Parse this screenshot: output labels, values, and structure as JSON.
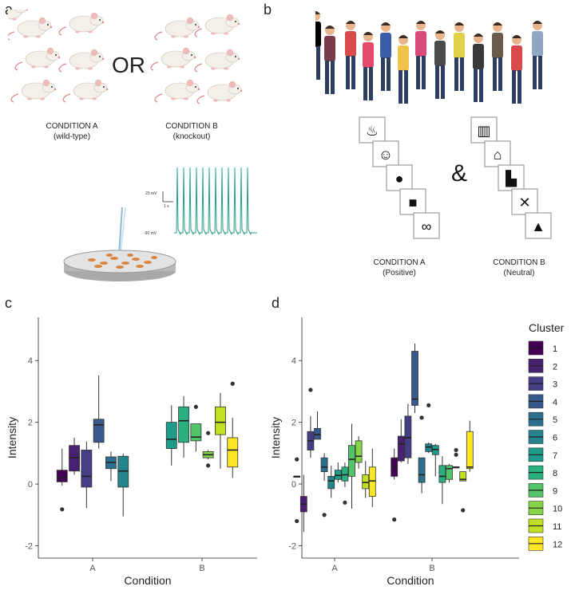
{
  "panel_a": {
    "letter": "a",
    "or_text": "OR",
    "condition_a": "CONDITION A",
    "condition_a_sub": "(wild-type)",
    "condition_b": "CONDITION B",
    "condition_b_sub": "(knockout)",
    "trace_scale_mv": "20 mV",
    "trace_scale_s": "1 s",
    "trace_baseline": "-90 mV",
    "trace_color": "#2a9d8f"
  },
  "panel_b": {
    "letter": "b",
    "ampersand": "&",
    "condition_a": "CONDITION A",
    "condition_a_sub": "(Positive)",
    "condition_b": "CONDITION B",
    "condition_b_sub": "(Neutral)"
  },
  "chart_data": [
    {
      "type": "boxplot",
      "panel": "c",
      "xlabel": "Condition",
      "ylabel": "Intensity",
      "ylim": [
        -2.4,
        5.4
      ],
      "yticks": [
        -2,
        0,
        2,
        4
      ],
      "categories": [
        "A",
        "B"
      ],
      "groups": [
        {
          "cond": "A",
          "cluster": 1,
          "min": -0.05,
          "q1": 0.07,
          "median": 0.22,
          "q3": 0.45,
          "max": 1.15,
          "outliers": [
            -0.82
          ]
        },
        {
          "cond": "A",
          "cluster": 2,
          "min": 0.3,
          "q1": 0.42,
          "median": 0.85,
          "q3": 1.25,
          "max": 1.5,
          "outliers": []
        },
        {
          "cond": "A",
          "cluster": 3,
          "min": -0.78,
          "q1": -0.1,
          "median": 0.25,
          "q3": 1.1,
          "max": 1.38,
          "outliers": []
        },
        {
          "cond": "A",
          "cluster": 4,
          "min": 1.15,
          "q1": 1.35,
          "median": 1.92,
          "q3": 2.1,
          "max": 3.52,
          "outliers": []
        },
        {
          "cond": "A",
          "cluster": 5,
          "min": 0.1,
          "q1": 0.5,
          "median": 0.7,
          "q3": 0.88,
          "max": 1.05,
          "outliers": []
        },
        {
          "cond": "A",
          "cluster": 6,
          "min": -1.05,
          "q1": -0.1,
          "median": 0.42,
          "q3": 0.9,
          "max": 0.98,
          "outliers": []
        },
        {
          "cond": "B",
          "cluster": 7,
          "min": 0.6,
          "q1": 1.15,
          "median": 1.45,
          "q3": 2.0,
          "max": 2.55,
          "outliers": []
        },
        {
          "cond": "B",
          "cluster": 8,
          "min": 0.85,
          "q1": 1.35,
          "median": 2.05,
          "q3": 2.5,
          "max": 2.85,
          "outliers": []
        },
        {
          "cond": "B",
          "cluster": 9,
          "min": 1.05,
          "q1": 1.4,
          "median": 1.52,
          "q3": 1.95,
          "max": 1.95,
          "outliers": [
            2.5
          ]
        },
        {
          "cond": "B",
          "cluster": 10,
          "min": 0.8,
          "q1": 0.85,
          "median": 0.95,
          "q3": 1.05,
          "max": 1.1,
          "outliers": [
            0.6,
            1.65
          ]
        },
        {
          "cond": "B",
          "cluster": 11,
          "min": 0.5,
          "q1": 1.6,
          "median": 2.0,
          "q3": 2.5,
          "max": 2.95,
          "outliers": []
        },
        {
          "cond": "B",
          "cluster": 12,
          "min": 0.2,
          "q1": 0.55,
          "median": 1.1,
          "q3": 1.5,
          "max": 2.15,
          "outliers": [
            3.25
          ]
        }
      ]
    },
    {
      "type": "boxplot",
      "panel": "d",
      "xlabel": "Condition",
      "ylabel": "Intensity",
      "ylim": [
        -2.4,
        5.4
      ],
      "yticks": [
        -2,
        0,
        2,
        4
      ],
      "categories": [
        "A",
        "B"
      ],
      "legend_title": "Cluster",
      "groups": [
        {
          "cond": "A",
          "cluster": 1,
          "min": 0.25,
          "q1": 0.25,
          "median": 0.25,
          "q3": 0.25,
          "max": 0.25,
          "outliers": [
            -1.2,
            0.8
          ]
        },
        {
          "cond": "A",
          "cluster": 2,
          "min": -1.55,
          "q1": -0.9,
          "median": -0.65,
          "q3": -0.4,
          "max": 0.3,
          "outliers": []
        },
        {
          "cond": "A",
          "cluster": 3,
          "min": 0.85,
          "q1": 1.1,
          "median": 1.4,
          "q3": 1.7,
          "max": 2.2,
          "outliers": [
            3.05
          ]
        },
        {
          "cond": "A",
          "cluster": 4,
          "min": 1.45,
          "q1": 1.45,
          "median": 1.6,
          "q3": 1.8,
          "max": 2.35,
          "outliers": []
        },
        {
          "cond": "A",
          "cluster": 5,
          "min": 0.1,
          "q1": 0.4,
          "median": 0.55,
          "q3": 0.85,
          "max": 1.0,
          "outliers": [
            -1.0
          ]
        },
        {
          "cond": "A",
          "cluster": 6,
          "min": -0.45,
          "q1": -0.15,
          "median": 0.1,
          "q3": 0.25,
          "max": 0.6,
          "outliers": []
        },
        {
          "cond": "A",
          "cluster": 7,
          "min": 0.05,
          "q1": 0.15,
          "median": 0.28,
          "q3": 0.45,
          "max": 0.7,
          "outliers": []
        },
        {
          "cond": "A",
          "cluster": 8,
          "min": -0.1,
          "q1": 0.1,
          "median": 0.3,
          "q3": 0.55,
          "max": 0.7,
          "outliers": [
            -0.6
          ]
        },
        {
          "cond": "A",
          "cluster": 9,
          "min": -0.8,
          "q1": 0.25,
          "median": 0.8,
          "q3": 1.25,
          "max": 1.95,
          "outliers": []
        },
        {
          "cond": "A",
          "cluster": 10,
          "min": 0.5,
          "q1": 0.7,
          "median": 0.9,
          "q3": 1.4,
          "max": 1.55,
          "outliers": []
        },
        {
          "cond": "A",
          "cluster": 11,
          "min": -0.45,
          "q1": -0.15,
          "median": 0.05,
          "q3": 0.3,
          "max": 0.75,
          "outliers": []
        },
        {
          "cond": "A",
          "cluster": 12,
          "min": -0.75,
          "q1": -0.4,
          "median": 0.1,
          "q3": 0.55,
          "max": 1.15,
          "outliers": []
        },
        {
          "cond": "B",
          "cluster": 1,
          "min": 0.15,
          "q1": 0.25,
          "median": 0.55,
          "q3": 0.85,
          "max": 1.15,
          "outliers": [
            -1.15
          ]
        },
        {
          "cond": "B",
          "cluster": 2,
          "min": 0.7,
          "q1": 0.75,
          "median": 1.3,
          "q3": 1.55,
          "max": 2.1,
          "outliers": []
        },
        {
          "cond": "B",
          "cluster": 3,
          "min": 0.65,
          "q1": 0.85,
          "median": 1.5,
          "q3": 2.2,
          "max": 2.6,
          "outliers": []
        },
        {
          "cond": "B",
          "cluster": 4,
          "min": 2.3,
          "q1": 2.55,
          "median": 2.75,
          "q3": 4.3,
          "max": 4.55,
          "outliers": []
        },
        {
          "cond": "B",
          "cluster": 5,
          "min": -0.3,
          "q1": 0.05,
          "median": 0.3,
          "q3": 0.85,
          "max": 0.85,
          "outliers": [
            2.15
          ]
        },
        {
          "cond": "B",
          "cluster": 6,
          "min": 1.0,
          "q1": 1.05,
          "median": 1.2,
          "q3": 1.3,
          "max": 1.35,
          "outliers": [
            2.55
          ]
        },
        {
          "cond": "B",
          "cluster": 7,
          "min": 0.25,
          "q1": 0.95,
          "median": 1.12,
          "q3": 1.25,
          "max": 1.3,
          "outliers": []
        },
        {
          "cond": "B",
          "cluster": 8,
          "min": -0.65,
          "q1": 0.05,
          "median": 0.25,
          "q3": 0.6,
          "max": 0.9,
          "outliers": []
        },
        {
          "cond": "B",
          "cluster": 9,
          "min": 0.05,
          "q1": 0.15,
          "median": 0.5,
          "q3": 0.6,
          "max": 0.65,
          "outliers": []
        },
        {
          "cond": "B",
          "cluster": 10,
          "min": 0.55,
          "q1": 0.55,
          "median": 0.55,
          "q3": 0.55,
          "max": 0.55,
          "outliers": [
            0.95,
            1.1
          ]
        },
        {
          "cond": "B",
          "cluster": 11,
          "min": 0.1,
          "q1": 0.1,
          "median": 0.15,
          "q3": 0.4,
          "max": 0.4,
          "outliers": [
            -0.85
          ]
        },
        {
          "cond": "B",
          "cluster": 12,
          "min": 0.4,
          "q1": 0.5,
          "median": 0.55,
          "q3": 1.7,
          "max": 2.05,
          "outliers": []
        }
      ]
    }
  ],
  "cluster_colors": [
    "#440154",
    "#482173",
    "#433e85",
    "#38598c",
    "#2d708e",
    "#25858e",
    "#1e9b8a",
    "#2ab07f",
    "#52c569",
    "#86d549",
    "#c2df23",
    "#fde725"
  ]
}
